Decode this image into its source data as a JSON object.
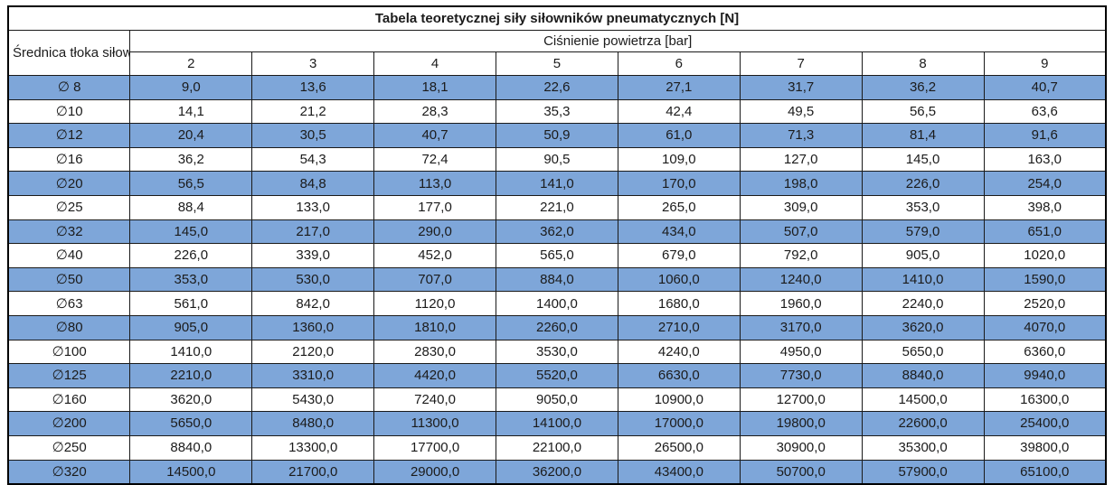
{
  "colors": {
    "row_blue": "#7ea6d9",
    "row_white": "#ffffff",
    "border": "#1a1a1a",
    "text": "#1b1b1b"
  },
  "chart_data": {
    "type": "table",
    "title": "Tabela teoretycznej siły siłowników pneumatycznych [N]",
    "row_header": "Średnica tłoka siłownika",
    "col_group_header": "Ciśnienie powietrza [bar]",
    "pressures_bar": [
      "2",
      "3",
      "4",
      "5",
      "6",
      "7",
      "8",
      "9"
    ],
    "rows": [
      {
        "diameter": "∅ 8",
        "values": [
          "9,0",
          "13,6",
          "18,1",
          "22,6",
          "27,1",
          "31,7",
          "36,2",
          "40,7"
        ]
      },
      {
        "diameter": "∅10",
        "values": [
          "14,1",
          "21,2",
          "28,3",
          "35,3",
          "42,4",
          "49,5",
          "56,5",
          "63,6"
        ]
      },
      {
        "diameter": "∅12",
        "values": [
          "20,4",
          "30,5",
          "40,7",
          "50,9",
          "61,0",
          "71,3",
          "81,4",
          "91,6"
        ]
      },
      {
        "diameter": "∅16",
        "values": [
          "36,2",
          "54,3",
          "72,4",
          "90,5",
          "109,0",
          "127,0",
          "145,0",
          "163,0"
        ]
      },
      {
        "diameter": "∅20",
        "values": [
          "56,5",
          "84,8",
          "113,0",
          "141,0",
          "170,0",
          "198,0",
          "226,0",
          "254,0"
        ]
      },
      {
        "diameter": "∅25",
        "values": [
          "88,4",
          "133,0",
          "177,0",
          "221,0",
          "265,0",
          "309,0",
          "353,0",
          "398,0"
        ]
      },
      {
        "diameter": "∅32",
        "values": [
          "145,0",
          "217,0",
          "290,0",
          "362,0",
          "434,0",
          "507,0",
          "579,0",
          "651,0"
        ]
      },
      {
        "diameter": "∅40",
        "values": [
          "226,0",
          "339,0",
          "452,0",
          "565,0",
          "679,0",
          "792,0",
          "905,0",
          "1020,0"
        ]
      },
      {
        "diameter": "∅50",
        "values": [
          "353,0",
          "530,0",
          "707,0",
          "884,0",
          "1060,0",
          "1240,0",
          "1410,0",
          "1590,0"
        ]
      },
      {
        "diameter": "∅63",
        "values": [
          "561,0",
          "842,0",
          "1120,0",
          "1400,0",
          "1680,0",
          "1960,0",
          "2240,0",
          "2520,0"
        ]
      },
      {
        "diameter": "∅80",
        "values": [
          "905,0",
          "1360,0",
          "1810,0",
          "2260,0",
          "2710,0",
          "3170,0",
          "3620,0",
          "4070,0"
        ]
      },
      {
        "diameter": "∅100",
        "values": [
          "1410,0",
          "2120,0",
          "2830,0",
          "3530,0",
          "4240,0",
          "4950,0",
          "5650,0",
          "6360,0"
        ]
      },
      {
        "diameter": "∅125",
        "values": [
          "2210,0",
          "3310,0",
          "4420,0",
          "5520,0",
          "6630,0",
          "7730,0",
          "8840,0",
          "9940,0"
        ]
      },
      {
        "diameter": "∅160",
        "values": [
          "3620,0",
          "5430,0",
          "7240,0",
          "9050,0",
          "10900,0",
          "12700,0",
          "14500,0",
          "16300,0"
        ]
      },
      {
        "diameter": "∅200",
        "values": [
          "5650,0",
          "8480,0",
          "11300,0",
          "14100,0",
          "17000,0",
          "19800,0",
          "22600,0",
          "25400,0"
        ]
      },
      {
        "diameter": "∅250",
        "values": [
          "8840,0",
          "13300,0",
          "17700,0",
          "22100,0",
          "26500,0",
          "30900,0",
          "35300,0",
          "39800,0"
        ]
      },
      {
        "diameter": "∅320",
        "values": [
          "14500,0",
          "21700,0",
          "29000,0",
          "36200,0",
          "43400,0",
          "50700,0",
          "57900,0",
          "65100,0"
        ]
      }
    ],
    "striping": "odd data rows (1st,3rd,...) highlighted blue, even rows white",
    "legend_position": "none",
    "grid": "all cell borders visible, thick outer border"
  }
}
